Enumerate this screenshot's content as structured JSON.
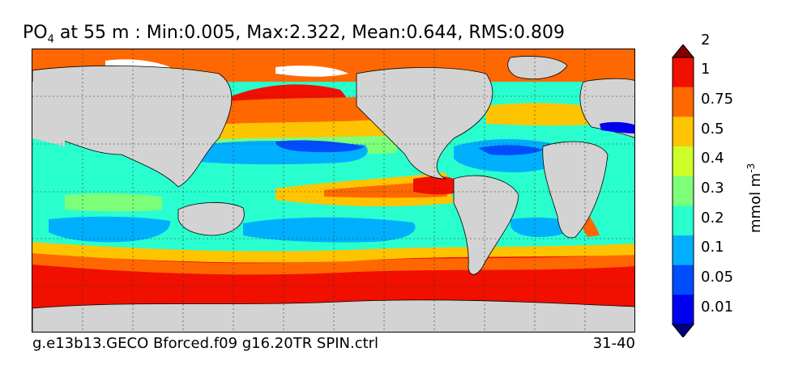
{
  "title": {
    "variable": "PO",
    "subscript": "4",
    "rest": " at 55 m : Min:0.005, Max:2.322, Mean:0.644, RMS:0.809"
  },
  "footer": {
    "run_name": "g.e13b13.GECO Bforced.f09 g16.20TR SPIN.ctrl",
    "period": "31-40"
  },
  "colorbar": {
    "unit_text": "mmol m",
    "unit_exponent": "-3",
    "tick_labels": [
      "0.01",
      "0.05",
      "0.1",
      "0.2",
      "0.3",
      "0.4",
      "0.5",
      "0.75",
      "1",
      "2"
    ],
    "levels": [
      {
        "label": "< 0.01",
        "color": "#00007f"
      },
      {
        "label": "0.01-0.05",
        "color": "#0000f1"
      },
      {
        "label": "0.05-0.1",
        "color": "#004cff"
      },
      {
        "label": "0.1-0.2",
        "color": "#00b0ff"
      },
      {
        "label": "0.2-0.3",
        "color": "#29ffce"
      },
      {
        "label": "0.3-0.4",
        "color": "#7dff7a"
      },
      {
        "label": "0.4-0.5",
        "color": "#ceff29"
      },
      {
        "label": "0.5-0.75",
        "color": "#ffc400"
      },
      {
        "label": "0.75-1",
        "color": "#ff6800"
      },
      {
        "label": "1-2",
        "color": "#f10f00"
      },
      {
        "label": "> 2",
        "color": "#7f0000"
      }
    ]
  },
  "map": {
    "land_color": "#d3d3d3",
    "projection": "global lon/lat, dashed graticule"
  }
}
